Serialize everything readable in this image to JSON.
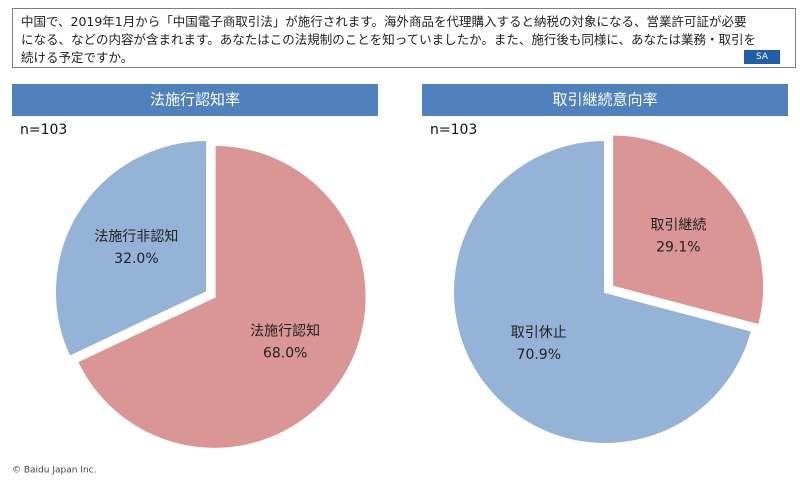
{
  "question": "中国で、2019年1月から「中国電子商取引法」が施行されます。海外商品を代理購入すると納税の対象になる、営業許可証が必要になる、などの内容が含まれます。あなたはこの法規制のことを知っていましたか。また、施行後も同様に、あなたは業務・取引を続ける予定ですか。",
  "badge": "SA",
  "footer": "© Baidu Japan Inc.",
  "chart_data": [
    {
      "type": "pie",
      "title": "法施行認知率",
      "note": "n=103",
      "categories": [
        "法施行認知",
        "法施行非認知"
      ],
      "values": [
        68.0,
        32.0
      ],
      "value_labels": [
        "68.0%",
        "32.0%"
      ],
      "colors": [
        "#d99694",
        "#95b3d7"
      ]
    },
    {
      "type": "pie",
      "title": "取引継続意向率",
      "note": "n=103",
      "categories": [
        "取引継続",
        "取引休止"
      ],
      "values": [
        29.1,
        70.9
      ],
      "value_labels": [
        "29.1%",
        "70.9%"
      ],
      "colors": [
        "#d99694",
        "#95b3d7"
      ]
    }
  ]
}
